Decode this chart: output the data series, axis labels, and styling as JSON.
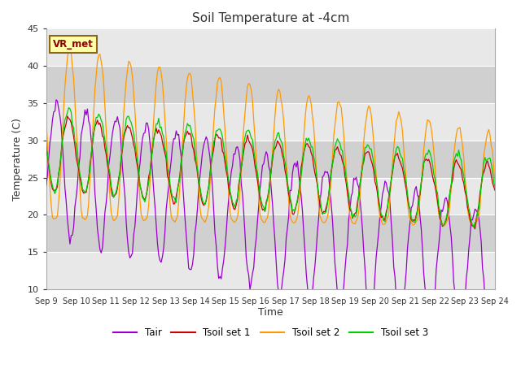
{
  "title": "Soil Temperature at -4cm",
  "xlabel": "Time",
  "ylabel": "Temperature (C)",
  "ylim": [
    10,
    45
  ],
  "colors": {
    "Tair": "#9900cc",
    "Tsoil1": "#cc0000",
    "Tsoil2": "#ff9900",
    "Tsoil3": "#00cc00"
  },
  "legend_labels": [
    "Tair",
    "Tsoil set 1",
    "Tsoil set 2",
    "Tsoil set 3"
  ],
  "xtick_labels": [
    "Sep 9",
    "Sep 10",
    "Sep 11",
    "Sep 12",
    "Sep 13",
    "Sep 14",
    "Sep 15",
    "Sep 16",
    "Sep 17",
    "Sep 18",
    "Sep 19",
    "Sep 20",
    "Sep 21",
    "Sep 22",
    "Sep 23",
    "Sep 24"
  ],
  "annotation_text": "VR_met",
  "annotation_color": "#8B0000",
  "annotation_bg": "#ffffaa",
  "annotation_border": "#8B6914",
  "bg_light": "#e8e8e8",
  "bg_dark": "#d0d0d0",
  "grid_color": "#ffffff"
}
